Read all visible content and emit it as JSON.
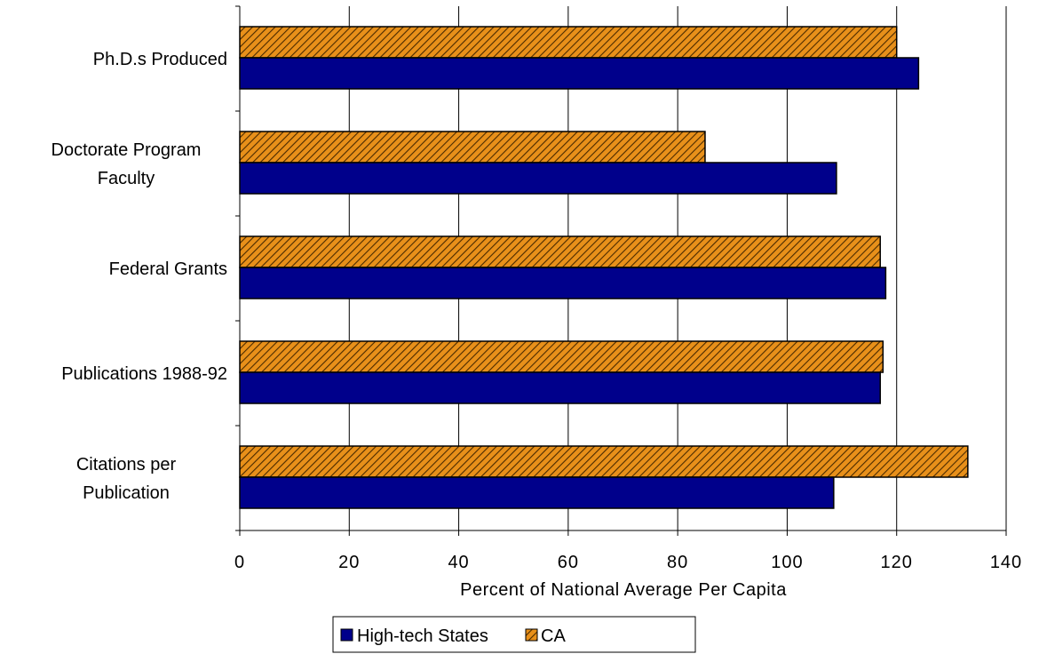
{
  "chart_data": {
    "type": "bar",
    "orientation": "horizontal",
    "categories": [
      [
        "Ph.D.s Produced"
      ],
      [
        "Doctorate  Program",
        "Faculty"
      ],
      [
        "Federal  Grants"
      ],
      [
        "Publications  1988-92"
      ],
      [
        "Citations  per",
        "Publication"
      ]
    ],
    "series": [
      {
        "name": "High-tech States",
        "color": "#00008B",
        "pattern": "solid",
        "values": [
          124,
          109,
          118,
          117,
          108.5
        ]
      },
      {
        "name": "CA",
        "color": "#E8901A",
        "pattern": "diagonal-hatch",
        "values": [
          120,
          85,
          117,
          117.5,
          133
        ]
      }
    ],
    "xlabel": "Percent of National Average Per Capita",
    "ylabel": "",
    "title": "",
    "xlim": [
      0,
      140
    ],
    "xticks": [
      0,
      20,
      40,
      60,
      80,
      100,
      120,
      140
    ],
    "grid": "vertical",
    "legend_position": "bottom"
  }
}
